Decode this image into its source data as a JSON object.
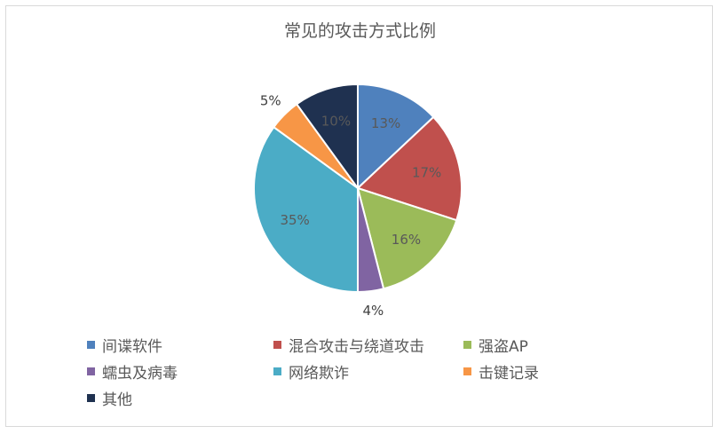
{
  "chart_data": {
    "type": "pie",
    "title": "常见的攻击方式比例",
    "slices": [
      {
        "name": "间谍软件",
        "value": 13,
        "label": "13%",
        "color": "#4f81bd"
      },
      {
        "name": "混合攻击与绕道攻击",
        "value": 17,
        "label": "17%",
        "color": "#c0504d"
      },
      {
        "name": "强盗AP",
        "value": 16,
        "label": "16%",
        "color": "#9bbb59"
      },
      {
        "name": "蠕虫及病毒",
        "value": 4,
        "label": "4%",
        "color": "#8064a2"
      },
      {
        "name": "网络欺诈",
        "value": 35,
        "label": "35%",
        "color": "#4bacc6"
      },
      {
        "name": "击键记录",
        "value": 5,
        "label": "5%",
        "color": "#f79646"
      },
      {
        "name": "其他",
        "value": 10,
        "label": "10%",
        "color": "#1f3150"
      }
    ],
    "legend_position": "bottom"
  }
}
